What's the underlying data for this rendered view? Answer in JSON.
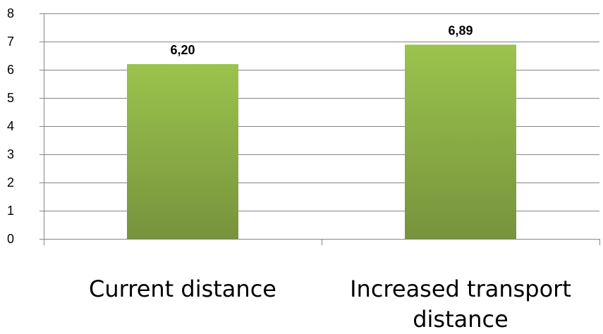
{
  "chart_data": {
    "type": "bar",
    "title": "",
    "xlabel": "",
    "ylabel": "",
    "categories": [
      [
        "Current distance"
      ],
      [
        "Increased transport",
        "distance"
      ]
    ],
    "values": [
      6.2,
      6.89
    ],
    "value_labels": [
      "6,20",
      "6,89"
    ],
    "ylim": [
      0,
      8
    ],
    "yticks": [
      0,
      1,
      2,
      3,
      4,
      5,
      6,
      7,
      8
    ],
    "ytick_labels": [
      "0",
      "1",
      "2",
      "3",
      "4",
      "5",
      "6",
      "7",
      "8"
    ],
    "grid": true,
    "legend": "none",
    "bar_color_top": "#9bc34d",
    "bar_color_bottom": "#77933c",
    "gridline_color": "#868686",
    "axis_color": "#868686"
  }
}
